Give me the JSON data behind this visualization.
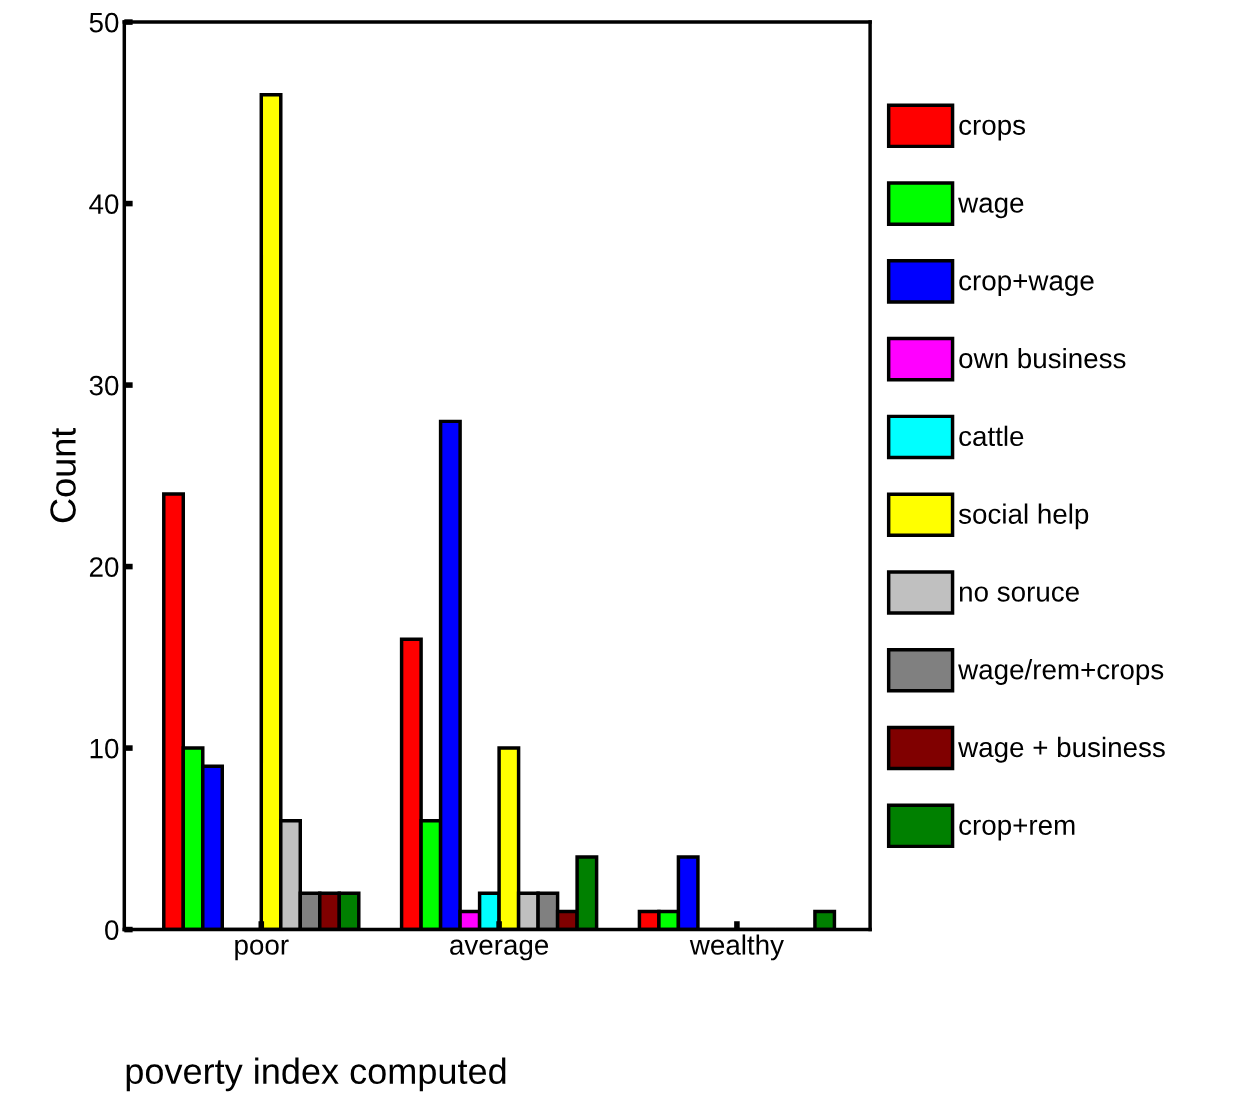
{
  "chart_data": {
    "type": "bar",
    "xlabel": "poverty index computed",
    "ylabel": "Count",
    "categories": [
      "poor",
      "average",
      "wealthy"
    ],
    "series": [
      {
        "name": "crops",
        "color": "#ff0000",
        "values": [
          24,
          16,
          1
        ]
      },
      {
        "name": "wage",
        "color": "#00ff00",
        "values": [
          10,
          6,
          1
        ]
      },
      {
        "name": "crop+wage",
        "color": "#0000ff",
        "values": [
          9,
          28,
          4
        ]
      },
      {
        "name": "own business",
        "color": "#ff00ff",
        "values": [
          0,
          1,
          0
        ]
      },
      {
        "name": "cattle",
        "color": "#00ffff",
        "values": [
          0,
          2,
          0
        ]
      },
      {
        "name": "social help",
        "color": "#ffff00",
        "values": [
          46,
          10,
          0
        ]
      },
      {
        "name": "no soruce",
        "color": "#c0c0c0",
        "values": [
          6,
          2,
          0
        ]
      },
      {
        "name": "wage/rem+crops",
        "color": "#808080",
        "values": [
          2,
          2,
          0
        ]
      },
      {
        "name": "wage + business",
        "color": "#800000",
        "values": [
          2,
          1,
          0
        ]
      },
      {
        "name": "crop+rem",
        "color": "#008000",
        "values": [
          2,
          4,
          1
        ]
      }
    ],
    "ylim": [
      0,
      50
    ],
    "yticks": [
      0,
      10,
      20,
      30,
      40,
      50
    ],
    "grid": false,
    "legend": "right"
  }
}
